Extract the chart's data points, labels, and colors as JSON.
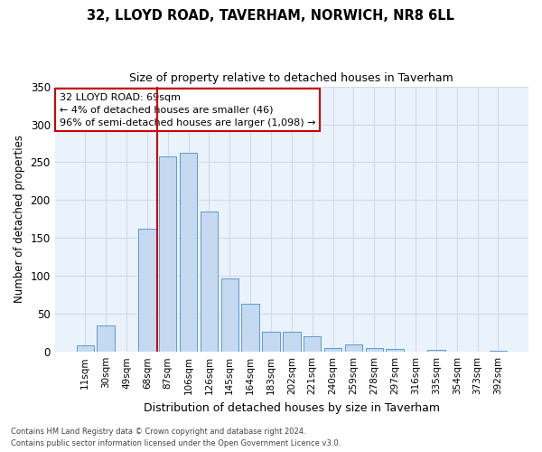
{
  "title": "32, LLOYD ROAD, TAVERHAM, NORWICH, NR8 6LL",
  "subtitle": "Size of property relative to detached houses in Taverham",
  "xlabel": "Distribution of detached houses by size in Taverham",
  "ylabel": "Number of detached properties",
  "bar_labels": [
    "11sqm",
    "30sqm",
    "49sqm",
    "68sqm",
    "87sqm",
    "106sqm",
    "126sqm",
    "145sqm",
    "164sqm",
    "183sqm",
    "202sqm",
    "221sqm",
    "240sqm",
    "259sqm",
    "278sqm",
    "297sqm",
    "316sqm",
    "335sqm",
    "354sqm",
    "373sqm",
    "392sqm"
  ],
  "bar_values": [
    9,
    35,
    0,
    162,
    258,
    263,
    185,
    97,
    63,
    27,
    27,
    20,
    5,
    10,
    5,
    4,
    0,
    3,
    0,
    0,
    2
  ],
  "bar_color": "#c5d9f1",
  "bar_edge_color": "#5b9bd5",
  "grid_color": "#d0dce8",
  "background_color": "#eaf2fb",
  "annotation_text": "32 LLOYD ROAD: 69sqm\n← 4% of detached houses are smaller (46)\n96% of semi-detached houses are larger (1,098) →",
  "annotation_box_color": "#ffffff",
  "annotation_border_color": "#cc0000",
  "ylim": [
    0,
    350
  ],
  "yticks": [
    0,
    50,
    100,
    150,
    200,
    250,
    300,
    350
  ],
  "footer_line1": "Contains HM Land Registry data © Crown copyright and database right 2024.",
  "footer_line2": "Contains public sector information licensed under the Open Government Licence v3.0."
}
